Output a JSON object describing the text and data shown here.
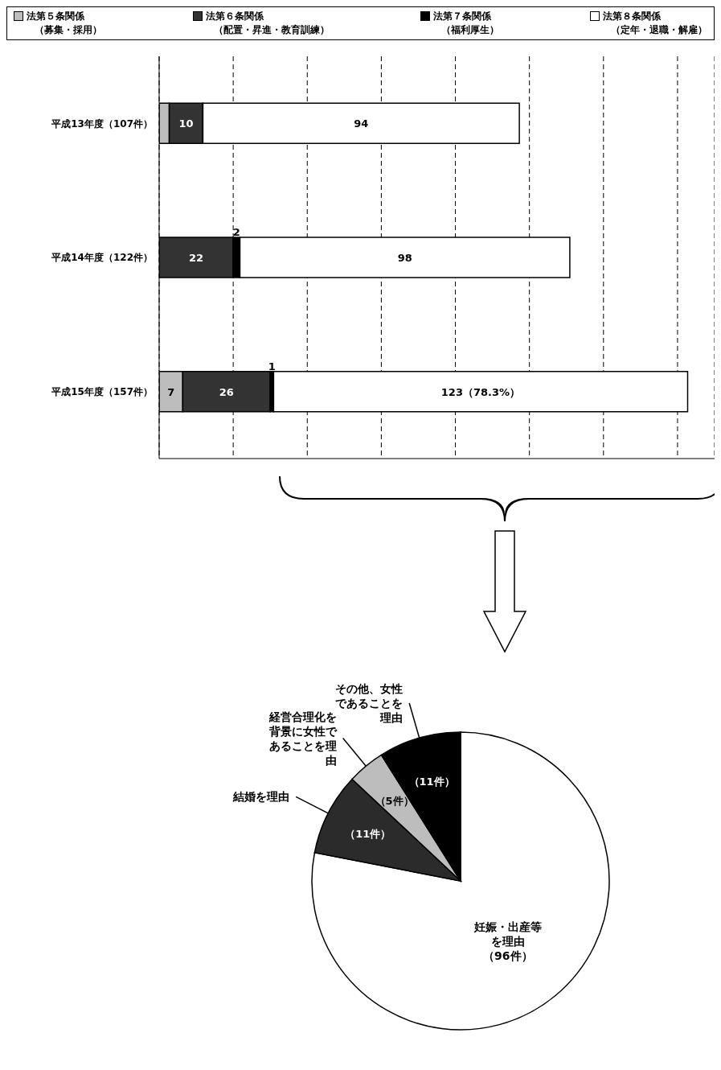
{
  "chart_data": [
    {
      "type": "bar",
      "orientation": "horizontal",
      "stacked": true,
      "legend": "top",
      "grid": "x",
      "xlim": [
        0,
        165
      ],
      "xticks": [
        {
          "value": 22,
          "label": null
        },
        {
          "value": 44,
          "label": null
        },
        {
          "value": 66,
          "label": null
        },
        {
          "value": 88,
          "label": null
        },
        {
          "value": 110,
          "label": null
        },
        {
          "value": 132,
          "label": null
        },
        {
          "value": 154,
          "label": null
        }
      ],
      "tick_labels": "y",
      "categories": [
        "平成13年度（107件）",
        "平成14年度（122件）",
        "平成15年度（157件）"
      ],
      "series": [
        {
          "name": "法第５条関係（募集・採用）",
          "color": "#bdbdbd",
          "values": [
            3,
            0,
            7
          ],
          "value_labels": [
            null,
            null,
            "7"
          ]
        },
        {
          "name": "法第６条関係（配置・昇進・教育訓練）",
          "color": "#333333",
          "values": [
            10,
            22,
            26
          ],
          "value_labels": [
            "10",
            "22",
            "26"
          ]
        },
        {
          "name": "法第７条関係（福利厚生）",
          "color": "#000000",
          "values": [
            0,
            2,
            1
          ],
          "value_labels": [
            null,
            "2",
            "1"
          ]
        },
        {
          "name": "法第８条関係（定年・退職・解雇）",
          "color": "#ffffff",
          "values": [
            94,
            98,
            123
          ],
          "value_labels": [
            "94",
            "98",
            "123（78.3%）"
          ]
        }
      ]
    },
    {
      "type": "pie",
      "categories": [
        "妊娠・出産等を理由",
        "結婚を理由",
        "経営合理化を背景に女性であることを理由",
        "その他、女性であることを理由"
      ],
      "values": [
        96,
        11,
        5,
        11
      ],
      "colors": [
        "#ffffff",
        "#2b2b2b",
        "#bdbdbd",
        "#000000"
      ],
      "value_labels": [
        "（96件）",
        "（11件）",
        "（5件）",
        "（11件）"
      ]
    }
  ]
}
